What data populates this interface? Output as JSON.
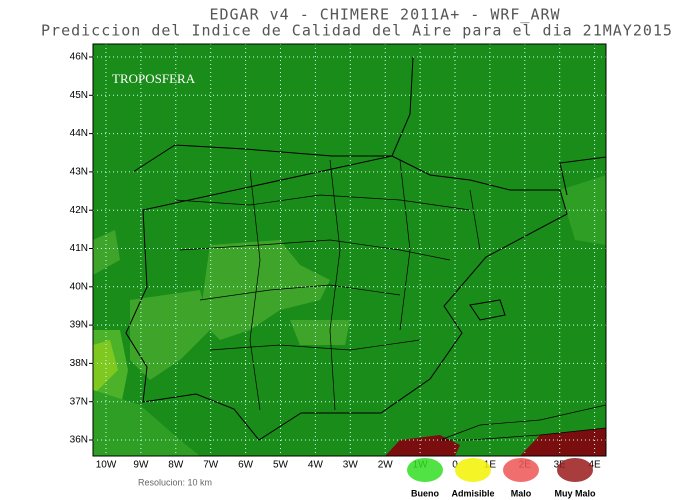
{
  "header": {
    "line1": "EDGAR v4 - CHIMERE 2011A+ - WRF_ARW",
    "line2": "Prediccion del Indice de Calidad del Aire para el dia 21MAY2015"
  },
  "map": {
    "logo": "TROPOSFERA",
    "y_labels": [
      "46N",
      "45N",
      "44N",
      "43N",
      "42N",
      "41N",
      "40N",
      "39N",
      "38N",
      "37N",
      "36N"
    ],
    "x_labels": [
      "10W",
      "9W",
      "8W",
      "7W",
      "6W",
      "5W",
      "4W",
      "3W",
      "2W",
      "1W",
      "0",
      "1E",
      "2E",
      "3E",
      "4E"
    ]
  },
  "footer": {
    "resolution": "Resolucion: 10 km"
  },
  "legend": [
    {
      "label": "Bueno",
      "color": "#33dd22"
    },
    {
      "label": "Admisible",
      "color": "#f2f200"
    },
    {
      "label": "Malo",
      "color": "#ee5555"
    },
    {
      "label": "Muy Malo",
      "color": "#9a1b1b"
    }
  ]
}
